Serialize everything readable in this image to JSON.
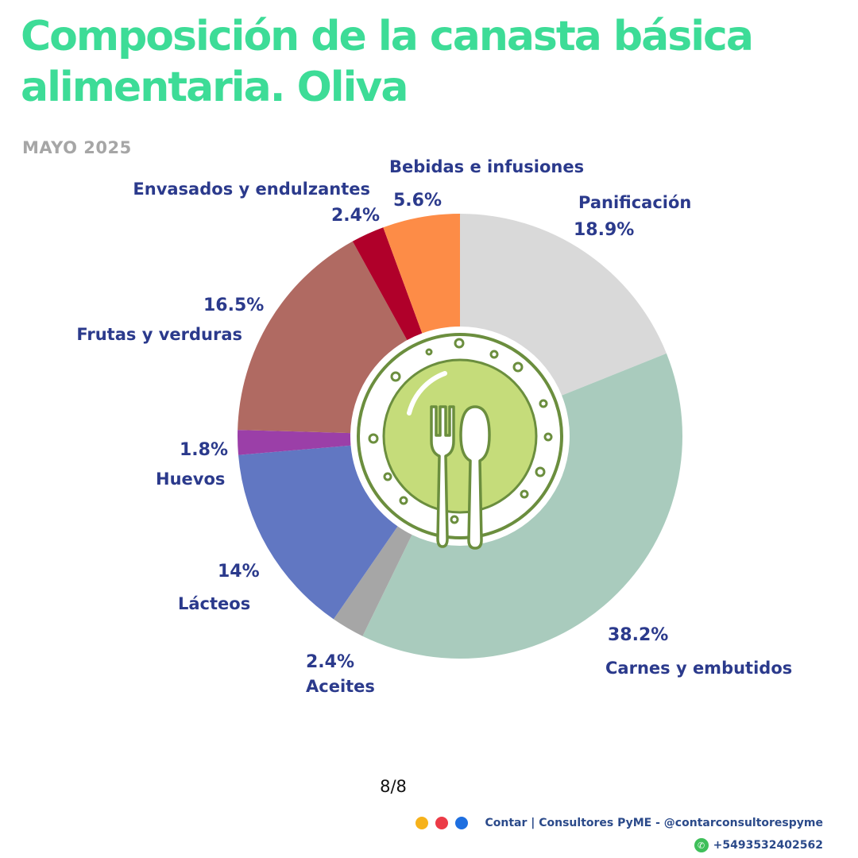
{
  "title": "Composición de la canasta básica alimentaria.  Oliva",
  "subtitle": "MAYO 2025",
  "chart_data": {
    "type": "pie",
    "title": "Composición de la canasta básica alimentaria.  Oliva",
    "subtitle": "MAYO 2025",
    "slices": [
      {
        "label": "Panificación",
        "value": 18.9,
        "display": "18.9%",
        "color": "#d9d9d9"
      },
      {
        "label": "Carnes y embutidos",
        "value": 38.2,
        "display": "38.2%",
        "color": "#a9cbbd"
      },
      {
        "label": "Aceites",
        "value": 2.4,
        "display": "2.4%",
        "color": "#a6a6a6"
      },
      {
        "label": "Lácteos",
        "value": 14,
        "display": "14%",
        "color": "#6177c2"
      },
      {
        "label": "Huevos",
        "value": 1.8,
        "display": "1.8%",
        "color": "#9b3fa8"
      },
      {
        "label": "Frutas y verduras",
        "value": 16.5,
        "display": "16.5%",
        "color": "#b06a62"
      },
      {
        "label": "Envasados y endulzantes",
        "value": 2.4,
        "display": "2.4%",
        "color": "#b0002a"
      },
      {
        "label": "Bebidas e infusiones",
        "value": 5.6,
        "display": "5.6%",
        "color": "#fd8c47"
      }
    ]
  },
  "page_indicator": "8/8",
  "footer": {
    "brand_text": "Contar | Consultores PyME - @contarconsultorespyme",
    "phone": "+5493532402562",
    "dot_colors": [
      "#f6b21b",
      "#ec3b47",
      "#1e6fe0"
    ]
  },
  "icons": {
    "center": "plate-fork-spoon-icon",
    "phone": "whatsapp-icon"
  }
}
